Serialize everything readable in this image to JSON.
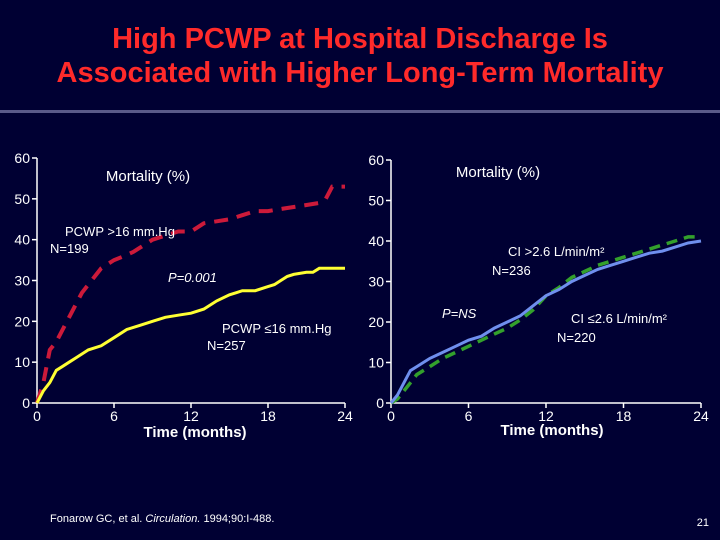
{
  "slide": {
    "title_line1": "High PCWP at Hospital Discharge Is",
    "title_line2": "Associated with Higher Long-Term Mortality",
    "citation_prefix": "Fonarow GC, et al. ",
    "citation_journal": "Circulation.",
    "citation_suffix": " 1994;90:I-488.",
    "page_number": "21"
  },
  "colors": {
    "background": "#000033",
    "title": "#ff2a2a",
    "high_pcwp": "#cc1a3a",
    "low_pcwp": "#ffff33",
    "high_ci": "#33a02c",
    "low_ci": "#6f8fee"
  },
  "chart_data": [
    {
      "type": "line",
      "ylabel": "Mortality (%)",
      "xlabel": "Time (months)",
      "xlim": [
        0,
        24
      ],
      "ylim": [
        0,
        60
      ],
      "xticks": [
        "0",
        "6",
        "12",
        "18",
        "24"
      ],
      "yticks": [
        "0",
        "10",
        "20",
        "30",
        "40",
        "50",
        "60"
      ],
      "annotation": "P=0.001",
      "series": [
        {
          "label_line1": "PCWP >16 mm.Hg",
          "label_line2": "N=199",
          "style": "dashed",
          "color": "#cc1a3a",
          "x": [
            0,
            0.5,
            1,
            1.5,
            2,
            2.5,
            3,
            3.5,
            4,
            4.5,
            5,
            6,
            6.8,
            7.5,
            8,
            8.5,
            9,
            10,
            11,
            12,
            12.5,
            13,
            14,
            15,
            16,
            17,
            18,
            19,
            20,
            21,
            22,
            22.5,
            23,
            24
          ],
          "y": [
            0,
            5,
            13,
            15,
            18,
            21,
            24,
            27,
            29,
            31,
            33,
            35,
            36,
            37,
            38,
            39,
            40,
            41,
            42,
            42,
            43,
            44,
            44.5,
            45,
            46,
            47,
            47,
            47.5,
            48,
            48.5,
            49,
            50,
            53,
            53
          ]
        },
        {
          "label_line1": "PCWP ≤16 mm.Hg",
          "label_line2": "N=257",
          "style": "solid",
          "color": "#ffff33",
          "x": [
            0,
            0.5,
            1,
            1.5,
            2,
            2.5,
            3,
            3.5,
            4,
            5,
            6,
            7,
            8,
            9,
            10,
            11,
            12,
            13,
            14,
            15,
            15.5,
            16,
            16.5,
            17,
            18,
            18.5,
            19,
            19.5,
            20,
            21,
            21.5,
            22,
            22.5,
            23,
            24
          ],
          "y": [
            0,
            3,
            5,
            8,
            9,
            10,
            11,
            12,
            13,
            14,
            16,
            18,
            19,
            20,
            21,
            21.5,
            22,
            23,
            25,
            26.5,
            27,
            27.5,
            27.5,
            27.5,
            28.5,
            29,
            30,
            31,
            31.5,
            32,
            32,
            33,
            33,
            33,
            33
          ]
        }
      ]
    },
    {
      "type": "line",
      "ylabel": "Mortality (%)",
      "xlabel": "Time (months)",
      "xlim": [
        0,
        24
      ],
      "ylim": [
        0,
        60
      ],
      "xticks": [
        "0",
        "6",
        "12",
        "18",
        "24"
      ],
      "yticks": [
        "0",
        "10",
        "20",
        "30",
        "40",
        "50",
        "60"
      ],
      "annotation": "P=NS",
      "series": [
        {
          "label_line1": "CI >2.6 L/min/m²",
          "label_line2": "N=236",
          "style": "dashed",
          "color": "#33a02c",
          "x": [
            0,
            0.5,
            1,
            1.5,
            2,
            3,
            4,
            5,
            6,
            7,
            8,
            9,
            10,
            11,
            12,
            13,
            14,
            15,
            16,
            17,
            18,
            19,
            20,
            21,
            22,
            23,
            24
          ],
          "y": [
            0,
            1,
            3,
            5,
            7,
            9,
            11,
            12.5,
            14,
            15.5,
            17,
            18.5,
            20.5,
            23,
            26.5,
            28.5,
            31,
            32.5,
            34,
            35,
            36,
            37,
            38,
            39,
            40,
            41,
            41
          ]
        },
        {
          "label_line1": "CI ≤2.6 L/min/m²",
          "label_line2": "N=220",
          "style": "solid",
          "color": "#6f8fee",
          "x": [
            0,
            0.5,
            1,
            1.5,
            2,
            3,
            4,
            5,
            6,
            7,
            8,
            9,
            10,
            11,
            12,
            13,
            14,
            15,
            16,
            17,
            18,
            19,
            20,
            21,
            22,
            23,
            24
          ],
          "y": [
            0,
            2,
            5,
            8,
            9,
            11,
            12.5,
            14,
            15.5,
            16.5,
            18.5,
            20,
            21.5,
            24,
            26.5,
            28,
            30,
            31.5,
            33,
            34,
            35,
            36,
            37,
            37.5,
            38.5,
            39.5,
            40
          ]
        }
      ]
    }
  ]
}
